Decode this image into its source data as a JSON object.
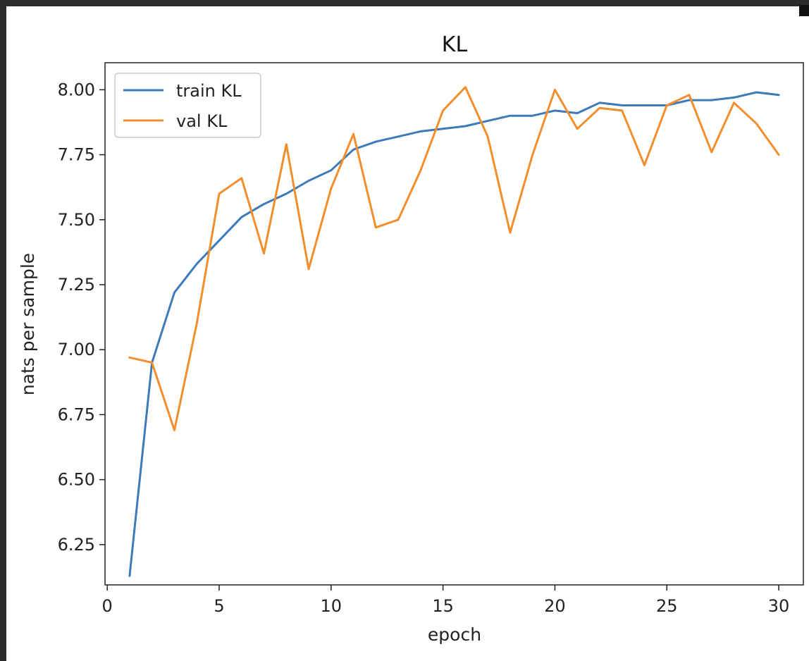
{
  "chart_data": {
    "type": "line",
    "title": "KL",
    "xlabel": "epoch",
    "ylabel": "nats per sample",
    "xlim": [
      -0.1,
      31.1
    ],
    "ylim": [
      6.095,
      8.104
    ],
    "xticks": [
      0,
      5,
      10,
      15,
      20,
      25,
      30
    ],
    "xtick_labels": [
      "0",
      "5",
      "10",
      "15",
      "20",
      "25",
      "30"
    ],
    "yticks": [
      6.25,
      6.5,
      6.75,
      7.0,
      7.25,
      7.5,
      7.75,
      8.0
    ],
    "ytick_labels": [
      "6.25",
      "6.50",
      "6.75",
      "7.00",
      "7.25",
      "7.50",
      "7.75",
      "8.00"
    ],
    "grid": false,
    "legend_position": "upper-left",
    "x": [
      1,
      2,
      3,
      4,
      5,
      6,
      7,
      8,
      9,
      10,
      11,
      12,
      13,
      14,
      15,
      16,
      17,
      18,
      19,
      20,
      21,
      22,
      23,
      24,
      25,
      26,
      27,
      28,
      29,
      30
    ],
    "series": [
      {
        "name": "train KL",
        "color": "#3d7ab8",
        "values": [
          6.13,
          6.95,
          7.22,
          7.33,
          7.42,
          7.51,
          7.56,
          7.6,
          7.65,
          7.69,
          7.77,
          7.8,
          7.82,
          7.84,
          7.85,
          7.86,
          7.88,
          7.9,
          7.9,
          7.92,
          7.91,
          7.95,
          7.94,
          7.94,
          7.94,
          7.96,
          7.96,
          7.97,
          7.99,
          7.98
        ]
      },
      {
        "name": "val KL",
        "color": "#f28e2b",
        "values": [
          6.97,
          6.95,
          6.69,
          7.1,
          7.6,
          7.66,
          7.37,
          7.79,
          7.31,
          7.62,
          7.83,
          7.47,
          7.5,
          7.69,
          7.92,
          8.01,
          7.82,
          7.45,
          7.75,
          8.0,
          7.85,
          7.93,
          7.92,
          7.71,
          7.94,
          7.98,
          7.76,
          7.95,
          7.87,
          7.75
        ]
      }
    ]
  }
}
